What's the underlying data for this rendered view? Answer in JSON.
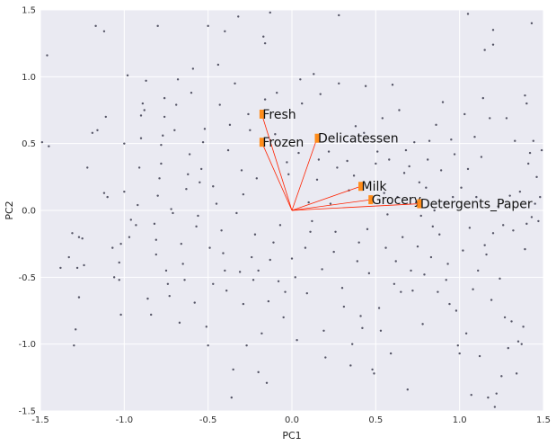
{
  "chart_data": {
    "type": "scatter",
    "title": "",
    "xlabel": "PC1",
    "ylabel": "PC2",
    "xlim": [
      -1.5,
      1.5
    ],
    "ylim": [
      -1.5,
      1.5
    ],
    "xticks": [
      "-1.5",
      "-1.0",
      "-0.5",
      "0.0",
      "0.5",
      "1.0",
      "1.5"
    ],
    "yticks": [
      "-1.5",
      "-1.0",
      "-0.5",
      "0.0",
      "0.5",
      "1.0",
      "1.5"
    ],
    "grid": true,
    "colors": {
      "background": "#eaeaf2",
      "grid": "#ffffff",
      "points": "#555566",
      "vectors": "#ff2200",
      "markers": "#ff8c1a"
    },
    "vectors": [
      {
        "label": "Fresh",
        "x": -0.18,
        "y": 0.72
      },
      {
        "label": "Frozen",
        "x": -0.18,
        "y": 0.51
      },
      {
        "label": "Delicatessen",
        "x": 0.15,
        "y": 0.54
      },
      {
        "label": "Milk",
        "x": 0.41,
        "y": 0.18
      },
      {
        "label": "Grocery",
        "x": 0.47,
        "y": 0.08
      },
      {
        "label": "Detergents_Paper",
        "x": 0.76,
        "y": 0.05
      }
    ],
    "points": [
      [
        -1.46,
        1.16
      ],
      [
        -1.45,
        0.48
      ],
      [
        -1.49,
        0.51
      ],
      [
        -1.38,
        -0.43
      ],
      [
        -1.33,
        -0.35
      ],
      [
        -1.31,
        -0.17
      ],
      [
        -1.27,
        -0.2
      ],
      [
        -1.28,
        -0.43
      ],
      [
        -1.29,
        -0.89
      ],
      [
        -1.3,
        -1.01
      ],
      [
        -1.27,
        -0.65
      ],
      [
        -1.25,
        -0.21
      ],
      [
        -1.24,
        -0.41
      ],
      [
        -1.22,
        0.32
      ],
      [
        -1.19,
        0.58
      ],
      [
        -1.16,
        0.6
      ],
      [
        -1.11,
        0.7
      ],
      [
        -1.12,
        0.13
      ],
      [
        -1.1,
        0.1
      ],
      [
        -1.07,
        -0.28
      ],
      [
        -1.06,
        -0.5
      ],
      [
        -1.03,
        -0.52
      ],
      [
        -1.03,
        -0.39
      ],
      [
        -1.02,
        -0.25
      ],
      [
        -1.0,
        0.5
      ],
      [
        -1.0,
        0.14
      ],
      [
        -0.98,
        1.01
      ],
      [
        -1.02,
        -0.78
      ],
      [
        -0.97,
        -0.2
      ],
      [
        -0.96,
        -0.07
      ],
      [
        -0.93,
        -0.11
      ],
      [
        -0.92,
        0.04
      ],
      [
        -0.91,
        0.32
      ],
      [
        -0.9,
        0.54
      ],
      [
        -0.9,
        0.71
      ],
      [
        -0.89,
        0.8
      ],
      [
        -0.88,
        0.75
      ],
      [
        -0.87,
        0.97
      ],
      [
        -0.86,
        -0.66
      ],
      [
        -0.84,
        -0.78
      ],
      [
        -0.82,
        -0.1
      ],
      [
        -0.81,
        -0.22
      ],
      [
        -0.81,
        -0.33
      ],
      [
        -0.8,
        0.11
      ],
      [
        -0.79,
        0.24
      ],
      [
        -0.78,
        0.35
      ],
      [
        -0.78,
        0.49
      ],
      [
        -0.77,
        0.56
      ],
      [
        -0.76,
        0.7
      ],
      [
        -0.76,
        0.84
      ],
      [
        -0.75,
        -0.45
      ],
      [
        -0.74,
        -0.55
      ],
      [
        -0.73,
        -0.64
      ],
      [
        -0.72,
        0.01
      ],
      [
        -0.71,
        -0.02
      ],
      [
        -0.7,
        0.6
      ],
      [
        -0.69,
        0.79
      ],
      [
        -0.68,
        0.98
      ],
      [
        -0.67,
        -0.84
      ],
      [
        -0.66,
        -0.25
      ],
      [
        -0.65,
        -0.4
      ],
      [
        -0.64,
        -0.52
      ],
      [
        -0.63,
        0.16
      ],
      [
        -0.62,
        0.27
      ],
      [
        -0.61,
        0.42
      ],
      [
        -0.6,
        0.88
      ],
      [
        -0.59,
        1.06
      ],
      [
        -0.58,
        -0.69
      ],
      [
        -0.57,
        -0.12
      ],
      [
        -0.56,
        -0.04
      ],
      [
        -0.55,
        0.21
      ],
      [
        -0.54,
        0.31
      ],
      [
        -0.53,
        0.51
      ],
      [
        -0.52,
        0.61
      ],
      [
        -0.51,
        -0.87
      ],
      [
        -0.5,
        -1.01
      ],
      [
        -0.49,
        -0.28
      ],
      [
        -0.47,
        -0.55
      ],
      [
        -0.47,
        0.18
      ],
      [
        -0.45,
        0.05
      ],
      [
        -0.44,
        1.09
      ],
      [
        -0.43,
        0.79
      ],
      [
        -0.42,
        -0.15
      ],
      [
        -0.41,
        -0.32
      ],
      [
        -0.4,
        -0.45
      ],
      [
        -0.39,
        -0.6
      ],
      [
        -0.38,
        0.45
      ],
      [
        -0.37,
        0.64
      ],
      [
        -0.36,
        -1.4
      ],
      [
        -0.35,
        -1.19
      ],
      [
        -0.34,
        0.95
      ],
      [
        -0.33,
        -0.02
      ],
      [
        -0.31,
        -0.46
      ],
      [
        -0.3,
        0.3
      ],
      [
        -0.29,
        0.12
      ],
      [
        -0.29,
        -0.7
      ],
      [
        -0.27,
        -1.01
      ],
      [
        -0.26,
        0.72
      ],
      [
        -0.25,
        0.6
      ],
      [
        -0.24,
        -0.35
      ],
      [
        -0.23,
        -0.52
      ],
      [
        -0.22,
        -0.18
      ],
      [
        -0.21,
        0.24
      ],
      [
        -0.2,
        -0.45
      ],
      [
        -0.2,
        -1.21
      ],
      [
        -0.18,
        -0.92
      ],
      [
        -0.17,
        1.3
      ],
      [
        -0.16,
        1.25
      ],
      [
        -0.16,
        0.83
      ],
      [
        -0.15,
        -1.29
      ],
      [
        -0.14,
        -0.68
      ],
      [
        -0.13,
        -0.37
      ],
      [
        -0.11,
        -0.24
      ],
      [
        -0.1,
        0.57
      ],
      [
        -0.09,
        0.88
      ],
      [
        -0.08,
        -0.53
      ],
      [
        -0.07,
        -0.11
      ],
      [
        -0.05,
        -0.8
      ],
      [
        -0.04,
        -0.61
      ],
      [
        -0.03,
        0.36
      ],
      [
        -0.02,
        0.27
      ],
      [
        0.0,
        -0.36
      ],
      [
        0.02,
        -0.5
      ],
      [
        0.03,
        -0.97
      ],
      [
        0.04,
        0.43
      ],
      [
        0.05,
        0.98
      ],
      [
        0.06,
        0.8
      ],
      [
        0.08,
        -0.28
      ],
      [
        0.09,
        -0.62
      ],
      [
        0.1,
        0.06
      ],
      [
        0.11,
        -0.16
      ],
      [
        0.12,
        -0.08
      ],
      [
        0.13,
        1.02
      ],
      [
        0.15,
        0.23
      ],
      [
        0.16,
        0.38
      ],
      [
        0.17,
        0.87
      ],
      [
        0.18,
        -0.44
      ],
      [
        0.19,
        -0.9
      ],
      [
        0.2,
        -1.1
      ],
      [
        0.22,
        0.44
      ],
      [
        0.23,
        0.05
      ],
      [
        0.25,
        -0.31
      ],
      [
        0.26,
        -0.16
      ],
      [
        0.27,
        0.32
      ],
      [
        0.28,
        0.95
      ],
      [
        0.3,
        -0.58
      ],
      [
        0.31,
        -0.72
      ],
      [
        0.33,
        0.37
      ],
      [
        0.34,
        0.15
      ],
      [
        0.35,
        -1.16
      ],
      [
        0.36,
        -1.0
      ],
      [
        0.37,
        0.26
      ],
      [
        0.38,
        0.63
      ],
      [
        0.39,
        -0.38
      ],
      [
        0.4,
        -0.24
      ],
      [
        0.41,
        -0.79
      ],
      [
        0.42,
        -0.88
      ],
      [
        0.43,
        0.58
      ],
      [
        0.44,
        0.93
      ],
      [
        0.45,
        -0.14
      ],
      [
        0.46,
        -0.47
      ],
      [
        0.48,
        -1.19
      ],
      [
        0.49,
        -1.22
      ],
      [
        0.5,
        0.35
      ],
      [
        0.51,
        0.44
      ],
      [
        0.52,
        -0.73
      ],
      [
        0.53,
        -0.9
      ],
      [
        0.54,
        0.69
      ],
      [
        0.55,
        0.13
      ],
      [
        0.56,
        -0.28
      ],
      [
        0.57,
        -0.03
      ],
      [
        0.58,
        0.38
      ],
      [
        0.59,
        -1.07
      ],
      [
        0.6,
        0.94
      ],
      [
        0.61,
        -0.55
      ],
      [
        0.62,
        -0.38
      ],
      [
        0.63,
        0.1
      ],
      [
        0.64,
        0.75
      ],
      [
        0.65,
        -0.61
      ],
      [
        0.66,
        -0.2
      ],
      [
        0.67,
        0.28
      ],
      [
        0.68,
        0.45
      ],
      [
        0.69,
        -1.34
      ],
      [
        0.7,
        0.33
      ],
      [
        0.71,
        -0.45
      ],
      [
        0.72,
        -0.6
      ],
      [
        0.73,
        0.51
      ],
      [
        0.74,
        0.06
      ],
      [
        0.75,
        -0.27
      ],
      [
        0.76,
        0.21
      ],
      [
        0.77,
        -0.04
      ],
      [
        0.78,
        -0.85
      ],
      [
        0.79,
        -0.48
      ],
      [
        0.8,
        0.17
      ],
      [
        0.81,
        0.38
      ],
      [
        0.82,
        0.52
      ],
      [
        0.83,
        -0.35
      ],
      [
        0.84,
        -0.12
      ],
      [
        0.85,
        0.0
      ],
      [
        0.86,
        0.64
      ],
      [
        0.87,
        -0.61
      ],
      [
        0.88,
        -0.18
      ],
      [
        0.89,
        0.3
      ],
      [
        0.9,
        0.81
      ],
      [
        0.91,
        0.06
      ],
      [
        0.92,
        -0.52
      ],
      [
        0.93,
        -0.4
      ],
      [
        0.94,
        -0.7
      ],
      [
        0.95,
        0.53
      ],
      [
        0.96,
        0.1
      ],
      [
        0.97,
        0.42
      ],
      [
        0.98,
        -0.75
      ],
      [
        0.99,
        -1.01
      ],
      [
        1.0,
        -1.07
      ],
      [
        1.01,
        0.17
      ],
      [
        1.02,
        -0.3
      ],
      [
        1.03,
        0.72
      ],
      [
        1.04,
        -0.92
      ],
      [
        1.05,
        0.31
      ],
      [
        1.06,
        -0.13
      ],
      [
        1.07,
        -1.38
      ],
      [
        1.08,
        -0.59
      ],
      [
        1.09,
        0.55
      ],
      [
        1.1,
        0.1
      ],
      [
        1.11,
        -0.45
      ],
      [
        1.12,
        -1.09
      ],
      [
        1.13,
        0.4
      ],
      [
        1.14,
        0.84
      ],
      [
        1.15,
        -0.26
      ],
      [
        1.16,
        -0.33
      ],
      [
        1.17,
        -1.4
      ],
      [
        1.18,
        0.69
      ],
      [
        1.19,
        -0.67
      ],
      [
        1.2,
        1.35
      ],
      [
        1.2,
        -0.17
      ],
      [
        1.21,
        -1.47
      ],
      [
        1.22,
        -1.37
      ],
      [
        1.23,
        0.03
      ],
      [
        1.24,
        -0.51
      ],
      [
        1.25,
        -1.24
      ],
      [
        1.26,
        -0.11
      ],
      [
        1.27,
        -0.8
      ],
      [
        1.28,
        0.69
      ],
      [
        1.29,
        -1.03
      ],
      [
        1.3,
        0.11
      ],
      [
        1.31,
        -0.83
      ],
      [
        1.32,
        -0.15
      ],
      [
        1.33,
        0.52
      ],
      [
        1.34,
        -1.22
      ],
      [
        1.35,
        -0.98
      ],
      [
        1.36,
        0.14
      ],
      [
        1.37,
        -1.0
      ],
      [
        1.38,
        -0.87
      ],
      [
        1.39,
        -0.29
      ],
      [
        1.4,
        -0.1
      ],
      [
        1.41,
        0.35
      ],
      [
        1.42,
        0.43
      ],
      [
        1.43,
        -0.05
      ],
      [
        1.44,
        0.52
      ],
      [
        1.45,
        0.05
      ],
      [
        1.46,
        0.25
      ],
      [
        1.47,
        -0.08
      ],
      [
        1.48,
        0.1
      ],
      [
        1.49,
        0.45
      ],
      [
        -1.17,
        1.38
      ],
      [
        -1.12,
        1.34
      ],
      [
        -0.8,
        1.38
      ],
      [
        -0.5,
        1.38
      ],
      [
        -0.4,
        1.34
      ],
      [
        -0.32,
        1.45
      ],
      [
        -0.13,
        1.48
      ],
      [
        0.28,
        1.46
      ],
      [
        1.05,
        1.47
      ],
      [
        1.15,
        1.2
      ],
      [
        1.2,
        1.24
      ],
      [
        1.39,
        0.86
      ],
      [
        1.4,
        0.8
      ],
      [
        1.43,
        1.4
      ]
    ]
  }
}
